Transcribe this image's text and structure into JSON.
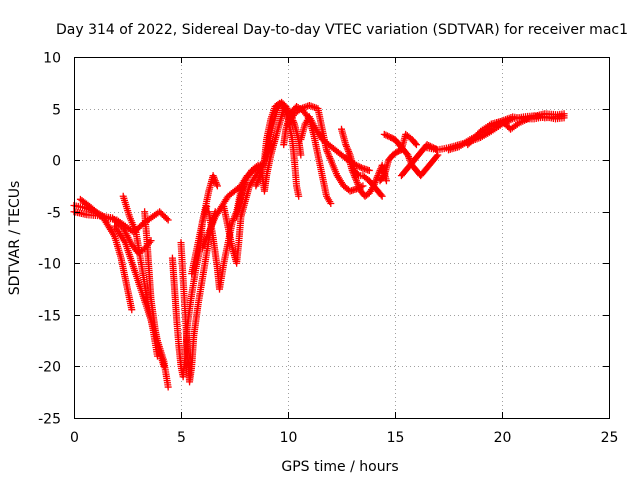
{
  "chart_data": {
    "type": "scatter",
    "title": "Day 314 of 2022, Sidereal Day-to-day VTEC variation (SDTVAR) for receiver mac1",
    "xlabel": "GPS time / hours",
    "ylabel": "SDTVAR / TECUs",
    "xlim": [
      0,
      25
    ],
    "ylim": [
      -25,
      10
    ],
    "xticks": [
      0,
      5,
      10,
      15,
      20,
      25
    ],
    "yticks": [
      -25,
      -20,
      -15,
      -10,
      -5,
      0,
      5,
      10
    ],
    "grid": true,
    "marker": "+",
    "series": [
      {
        "name": "SDTVAR",
        "color": "#ff0000",
        "tracks": [
          [
            [
              0,
              -4.4
            ],
            [
              0.5,
              -4.6
            ],
            [
              1.0,
              -5.0
            ],
            [
              1.5,
              -5.6
            ],
            [
              2.0,
              -5.8
            ],
            [
              2.4,
              -6.4
            ],
            [
              2.8,
              -7.0
            ],
            [
              3.2,
              -6.2
            ],
            [
              3.6,
              -5.6
            ],
            [
              4.0,
              -5.0
            ],
            [
              4.4,
              -5.8
            ]
          ],
          [
            [
              0,
              -5.0
            ],
            [
              0.6,
              -5.3
            ],
            [
              1.2,
              -5.4
            ],
            [
              1.8,
              -5.6
            ],
            [
              2.3,
              -6.6
            ],
            [
              2.7,
              -8.2
            ],
            [
              3.0,
              -9.0
            ],
            [
              3.3,
              -8.6
            ],
            [
              3.6,
              -7.8
            ]
          ],
          [
            [
              0.3,
              -3.8
            ],
            [
              0.8,
              -4.6
            ],
            [
              1.4,
              -5.7
            ],
            [
              1.9,
              -7.4
            ],
            [
              2.2,
              -9.5
            ],
            [
              2.5,
              -12.5
            ],
            [
              2.7,
              -14.5
            ]
          ],
          [
            [
              1.9,
              -6.4
            ],
            [
              2.4,
              -8.0
            ],
            [
              2.8,
              -10.5
            ],
            [
              3.2,
              -13.0
            ],
            [
              3.6,
              -15.5
            ],
            [
              3.9,
              -17.5
            ],
            [
              4.2,
              -19.5
            ],
            [
              4.4,
              -22.0
            ]
          ],
          [
            [
              3.3,
              -5.0
            ],
            [
              3.4,
              -7.5
            ],
            [
              3.5,
              -10.5
            ],
            [
              3.6,
              -13.5
            ],
            [
              3.8,
              -16.5
            ],
            [
              4.0,
              -18.5
            ],
            [
              4.2,
              -20.0
            ]
          ],
          [
            [
              2.3,
              -3.5
            ],
            [
              2.6,
              -5.5
            ],
            [
              2.9,
              -7.0
            ],
            [
              3.1,
              -9.5
            ],
            [
              3.3,
              -12.0
            ],
            [
              3.5,
              -14.5
            ],
            [
              3.7,
              -16.5
            ],
            [
              3.9,
              -19.0
            ]
          ],
          [
            [
              4.6,
              -9.5
            ],
            [
              4.7,
              -12.5
            ],
            [
              4.8,
              -15.5
            ],
            [
              4.9,
              -18.0
            ],
            [
              5.0,
              -20.0
            ],
            [
              5.1,
              -21.0
            ],
            [
              5.2,
              -19.0
            ],
            [
              5.3,
              -16.0
            ],
            [
              5.5,
              -13.0
            ],
            [
              5.7,
              -10.5
            ],
            [
              5.9,
              -8.5
            ],
            [
              6.0,
              -6.0
            ],
            [
              6.2,
              -4.5
            ]
          ],
          [
            [
              5.0,
              -8.0
            ],
            [
              5.1,
              -11.5
            ],
            [
              5.2,
              -15.0
            ],
            [
              5.3,
              -18.5
            ],
            [
              5.4,
              -21.5
            ],
            [
              5.5,
              -20.0
            ],
            [
              5.6,
              -17.0
            ],
            [
              5.8,
              -14.0
            ],
            [
              6.0,
              -11.5
            ],
            [
              6.2,
              -9.0
            ],
            [
              6.4,
              -6.5
            ],
            [
              6.6,
              -5.0
            ]
          ],
          [
            [
              5.5,
              -11.0
            ],
            [
              5.7,
              -9.0
            ],
            [
              5.9,
              -7.0
            ],
            [
              6.1,
              -5.0
            ],
            [
              6.3,
              -3.0
            ],
            [
              6.5,
              -1.5
            ],
            [
              6.7,
              -2.5
            ]
          ],
          [
            [
              6.3,
              -5.0
            ],
            [
              6.5,
              -7.5
            ],
            [
              6.7,
              -10.5
            ],
            [
              6.8,
              -12.5
            ],
            [
              7.0,
              -10.0
            ],
            [
              7.2,
              -8.0
            ],
            [
              7.4,
              -6.0
            ],
            [
              7.6,
              -5.0
            ],
            [
              7.8,
              -3.0
            ],
            [
              8.0,
              -2.0
            ]
          ],
          [
            [
              6.0,
              -8.5
            ],
            [
              6.3,
              -7.0
            ],
            [
              6.6,
              -5.5
            ],
            [
              6.9,
              -4.5
            ],
            [
              7.2,
              -3.5
            ],
            [
              7.5,
              -3.0
            ],
            [
              7.8,
              -2.5
            ],
            [
              8.1,
              -1.5
            ],
            [
              8.4,
              -1.0
            ],
            [
              8.7,
              -0.5
            ]
          ],
          [
            [
              7.0,
              -4.5
            ],
            [
              7.2,
              -6.5
            ],
            [
              7.4,
              -8.5
            ],
            [
              7.6,
              -10.0
            ],
            [
              7.7,
              -8.0
            ],
            [
              7.8,
              -5.5
            ],
            [
              8.0,
              -4.0
            ],
            [
              8.2,
              -2.5
            ],
            [
              8.5,
              -1.5
            ],
            [
              8.8,
              -0.5
            ],
            [
              9.0,
              0.5
            ],
            [
              9.2,
              1.5
            ]
          ],
          [
            [
              7.6,
              -5.5
            ],
            [
              7.8,
              -3.5
            ],
            [
              8.0,
              -2.0
            ],
            [
              8.3,
              -1.0
            ],
            [
              8.6,
              -0.5
            ],
            [
              8.8,
              -1.5
            ],
            [
              8.9,
              -3.0
            ],
            [
              9.0,
              -1.5
            ],
            [
              9.2,
              0.5
            ],
            [
              9.4,
              2.0
            ],
            [
              9.6,
              3.5
            ],
            [
              9.8,
              5.0
            ]
          ],
          [
            [
              8.5,
              -2.5
            ],
            [
              8.7,
              -1.5
            ],
            [
              8.9,
              0.0
            ],
            [
              9.1,
              1.5
            ],
            [
              9.3,
              3.5
            ],
            [
              9.5,
              5.0
            ],
            [
              9.7,
              5.6
            ],
            [
              9.9,
              5.2
            ],
            [
              10.1,
              4.5
            ],
            [
              10.3,
              3.5
            ],
            [
              10.5,
              2.0
            ],
            [
              10.6,
              0.5
            ]
          ],
          [
            [
              8.9,
              0.0
            ],
            [
              9.0,
              2.0
            ],
            [
              9.2,
              4.0
            ],
            [
              9.4,
              5.2
            ],
            [
              9.6,
              5.5
            ],
            [
              9.8,
              5.3
            ],
            [
              10.0,
              4.0
            ],
            [
              10.2,
              2.0
            ],
            [
              10.3,
              0.0
            ],
            [
              10.4,
              -2.5
            ],
            [
              10.5,
              -3.5
            ]
          ],
          [
            [
              9.8,
              1.5
            ],
            [
              9.9,
              3.0
            ],
            [
              10.1,
              4.5
            ],
            [
              10.4,
              5.2
            ],
            [
              10.7,
              4.8
            ],
            [
              11.0,
              4.0
            ],
            [
              11.2,
              2.5
            ],
            [
              11.4,
              0.5
            ],
            [
              11.6,
              -1.5
            ],
            [
              11.8,
              -3.5
            ],
            [
              12.0,
              -4.2
            ]
          ],
          [
            [
              10.0,
              3.5
            ],
            [
              10.3,
              4.5
            ],
            [
              10.6,
              5.0
            ],
            [
              11.0,
              5.3
            ],
            [
              11.4,
              5.0
            ],
            [
              11.6,
              3.0
            ],
            [
              11.8,
              1.0
            ],
            [
              12.0,
              0.0
            ],
            [
              12.3,
              -1.5
            ],
            [
              12.6,
              -2.5
            ],
            [
              12.9,
              -3.0
            ],
            [
              13.2,
              -2.8
            ],
            [
              13.5,
              -2.5
            ]
          ],
          [
            [
              10.6,
              2.0
            ],
            [
              10.8,
              3.5
            ],
            [
              11.0,
              4.2
            ],
            [
              11.3,
              3.0
            ],
            [
              11.6,
              2.0
            ],
            [
              11.9,
              1.5
            ],
            [
              12.2,
              1.0
            ],
            [
              12.5,
              0.5
            ],
            [
              12.8,
              0.0
            ],
            [
              13.2,
              -0.5
            ],
            [
              13.5,
              -0.8
            ],
            [
              13.8,
              -1.0
            ]
          ],
          [
            [
              12.5,
              3.0
            ],
            [
              12.7,
              1.5
            ],
            [
              12.9,
              0.5
            ],
            [
              13.1,
              -1.0
            ],
            [
              13.3,
              -1.5
            ],
            [
              13.5,
              -1.5
            ],
            [
              13.8,
              -2.0
            ],
            [
              14.0,
              -2.5
            ],
            [
              14.2,
              -3.0
            ],
            [
              14.4,
              -3.5
            ]
          ],
          [
            [
              12.8,
              0.5
            ],
            [
              13.0,
              -1.0
            ],
            [
              13.2,
              -2.0
            ],
            [
              13.4,
              -3.0
            ],
            [
              13.6,
              -3.5
            ],
            [
              13.8,
              -3.2
            ],
            [
              14.0,
              -2.5
            ],
            [
              14.2,
              -1.5
            ],
            [
              14.4,
              -0.5
            ],
            [
              14.6,
              -2.0
            ]
          ],
          [
            [
              14.3,
              -2.0
            ],
            [
              14.5,
              -1.5
            ],
            [
              14.7,
              0.0
            ],
            [
              14.9,
              0.5
            ],
            [
              15.1,
              0.8
            ],
            [
              15.3,
              1.0
            ],
            [
              15.5,
              2.5
            ],
            [
              15.8,
              2.0
            ],
            [
              16.0,
              1.5
            ]
          ],
          [
            [
              15.3,
              -1.5
            ],
            [
              15.5,
              -1.0
            ],
            [
              15.7,
              -0.5
            ],
            [
              15.9,
              0.0
            ],
            [
              16.1,
              0.5
            ],
            [
              16.3,
              1.0
            ],
            [
              16.5,
              1.5
            ],
            [
              16.8,
              1.2
            ],
            [
              17.0,
              1.0
            ]
          ],
          [
            [
              14.5,
              2.5
            ],
            [
              14.8,
              2.2
            ],
            [
              15.0,
              2.0
            ],
            [
              15.2,
              1.5
            ],
            [
              15.4,
              1.0
            ],
            [
              15.6,
              0.5
            ],
            [
              15.8,
              -0.5
            ],
            [
              16.0,
              -1.0
            ],
            [
              16.2,
              -1.5
            ],
            [
              16.4,
              -1.0
            ],
            [
              16.6,
              -0.5
            ],
            [
              16.8,
              0.0
            ],
            [
              17.0,
              0.5
            ]
          ],
          [
            [
              16.5,
              1.2
            ],
            [
              17.0,
              1.0
            ],
            [
              17.5,
              1.2
            ],
            [
              18.0,
              1.5
            ],
            [
              18.5,
              1.8
            ],
            [
              19.0,
              2.2
            ],
            [
              19.5,
              2.8
            ],
            [
              20.0,
              3.5
            ],
            [
              20.5,
              4.0
            ],
            [
              21.0,
              4.2
            ],
            [
              21.5,
              4.3
            ],
            [
              22.0,
              4.1
            ],
            [
              22.5,
              4.2
            ],
            [
              22.9,
              4.3
            ]
          ],
          [
            [
              17.5,
              1.0
            ],
            [
              18.0,
              1.3
            ],
            [
              18.5,
              2.0
            ],
            [
              19.0,
              2.5
            ],
            [
              19.5,
              3.2
            ],
            [
              20.0,
              3.8
            ],
            [
              20.5,
              4.2
            ],
            [
              21.0,
              4.0
            ],
            [
              21.5,
              4.0
            ],
            [
              22.0,
              4.2
            ],
            [
              22.5,
              4.0
            ],
            [
              22.9,
              4.1
            ]
          ],
          [
            [
              18.4,
              1.5
            ],
            [
              19.0,
              2.8
            ],
            [
              19.5,
              3.5
            ],
            [
              20.0,
              3.8
            ],
            [
              20.4,
              3.0
            ],
            [
              20.8,
              3.6
            ],
            [
              21.4,
              4.2
            ],
            [
              22.0,
              4.5
            ],
            [
              22.6,
              4.4
            ],
            [
              22.9,
              4.5
            ]
          ]
        ]
      }
    ]
  }
}
